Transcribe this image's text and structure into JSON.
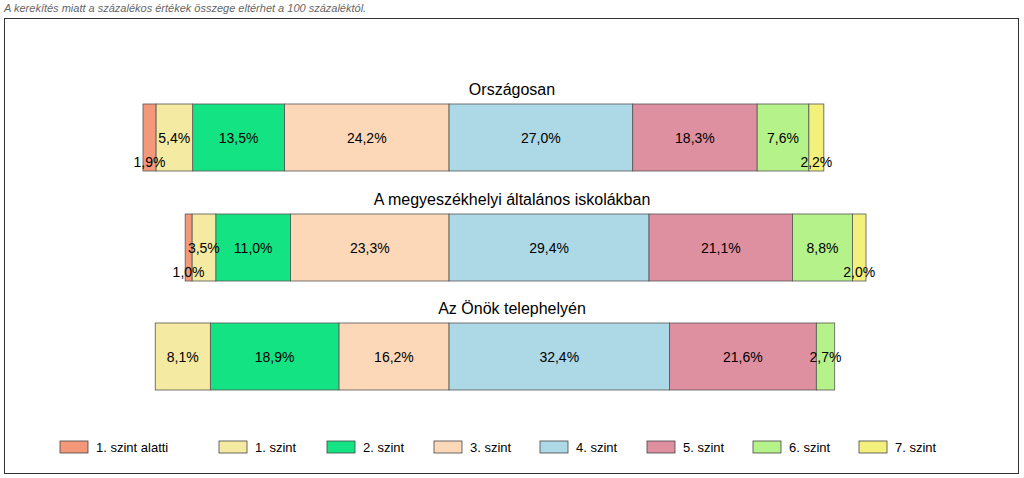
{
  "chart_data": {
    "type": "bar",
    "orientation": "horizontal",
    "stacked": true,
    "data_labels": true,
    "tick_labels": false,
    "legend": "bottom",
    "subtitle": "A kerekítés miatt a  százalékos értékek összege eltérhet a 100 százaléktól.",
    "categories": [
      "Országosan",
      "A megyeszékhelyi általános iskolákban",
      "Az Önök telephelyén"
    ],
    "series": [
      {
        "name": "1. szint alatti",
        "color": "#F4987A",
        "values": [
          1.9,
          1.0,
          null
        ],
        "value_labels": [
          "1,9%",
          "1,0%",
          null
        ]
      },
      {
        "name": "1. szint",
        "color": "#F5EAA2",
        "values": [
          5.4,
          3.5,
          8.1
        ],
        "value_labels": [
          "5,4%",
          "3,5%",
          "8,1%"
        ]
      },
      {
        "name": "2. szint",
        "color": "#14E384",
        "values": [
          13.5,
          11.0,
          18.9
        ],
        "value_labels": [
          "13,5%",
          "11,0%",
          "18,9%"
        ]
      },
      {
        "name": "3. szint",
        "color": "#FDD8B8",
        "values": [
          24.2,
          23.3,
          16.2
        ],
        "value_labels": [
          "24,2%",
          "23,3%",
          "16,2%"
        ]
      },
      {
        "name": "4. szint",
        "color": "#ADD8E6",
        "values": [
          27.0,
          29.4,
          32.4
        ],
        "value_labels": [
          "27,0%",
          "29,4%",
          "32,4%"
        ]
      },
      {
        "name": "5. szint",
        "color": "#DE8FA0",
        "values": [
          18.3,
          21.1,
          21.6
        ],
        "value_labels": [
          "18,3%",
          "21,1%",
          "21,6%"
        ]
      },
      {
        "name": "6. szint",
        "color": "#B5F28A",
        "values": [
          7.6,
          8.8,
          2.7
        ],
        "value_labels": [
          "7,6%",
          "8,8%",
          "2,7%"
        ]
      },
      {
        "name": "7. szint",
        "color": "#F3F07C",
        "values": [
          2.2,
          2.0,
          null
        ],
        "value_labels": [
          "2,2%",
          "2,0%",
          null
        ]
      }
    ]
  }
}
